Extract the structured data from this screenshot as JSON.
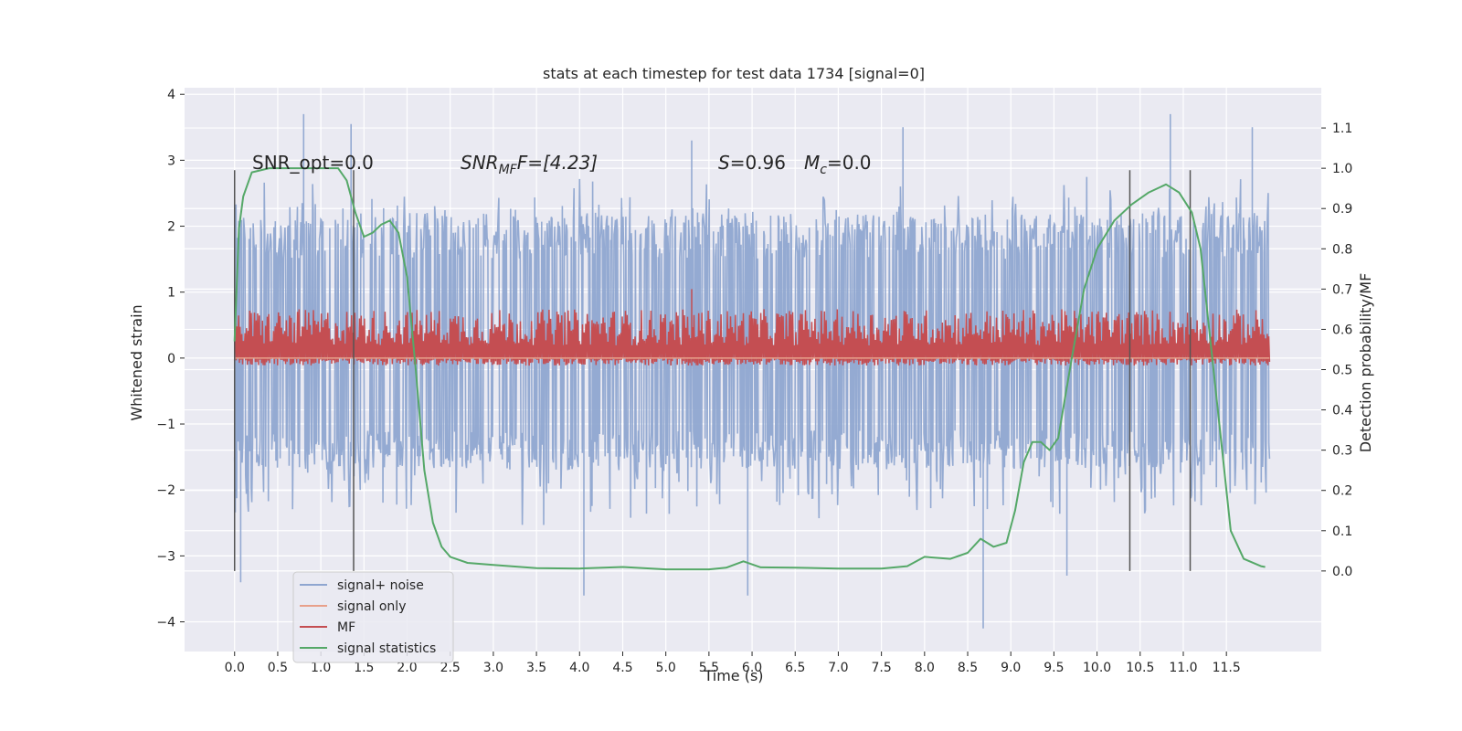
{
  "chart_data": {
    "type": "line",
    "title": "stats at each timestep for test data 1734 [signal=0]",
    "xlabel": "Time (s)",
    "ylabel": "Whitened strain",
    "ylabel_right": "Detection probability/MF",
    "xlim": [
      -0.58,
      12.6
    ],
    "ylim": [
      -4.45,
      4.1
    ],
    "ylim_right": [
      -0.2,
      1.2
    ],
    "x_ticks": [
      "0.0",
      "0.5",
      "1.0",
      "1.5",
      "2.0",
      "2.5",
      "3.0",
      "3.5",
      "4.0",
      "4.5",
      "5.0",
      "5.5",
      "6.0",
      "6.5",
      "7.0",
      "7.5",
      "8.0",
      "8.5",
      "9.0",
      "9.5",
      "10.0",
      "10.5",
      "11.0",
      "11.5"
    ],
    "y_ticks": [
      "−4",
      "−3",
      "−2",
      "−1",
      "0",
      "1",
      "2",
      "3",
      "4"
    ],
    "y_ticks_right": [
      "0.0",
      "0.1",
      "0.2",
      "0.3",
      "0.4",
      "0.5",
      "0.6",
      "0.7",
      "0.8",
      "0.9",
      "1.0",
      "1.1"
    ],
    "grid": true,
    "legend_position": "lower-left",
    "annotations": {
      "snr_opt": "SNR_opt=0.0",
      "snr_mf_main": "SNR",
      "snr_mf_sub": "MF",
      "snr_mf_tail": "F=[4.23]",
      "s_main": "S",
      "s_tail": "=0.96",
      "mc_main": "M",
      "mc_sub": "c",
      "mc_tail": "=0.0"
    },
    "vertical_markers": [
      0.0,
      1.38,
      10.38,
      11.08
    ],
    "series": [
      {
        "name": "signal+ noise",
        "color": "#8fa6d0",
        "envelope_x": [
          0.0,
          12.0
        ],
        "typical_range": [
          -1.7,
          2.2
        ],
        "peaks_up": [
          [
            0.05,
            1.9
          ],
          [
            0.8,
            3.7
          ],
          [
            1.35,
            3.55
          ],
          [
            5.3,
            3.3
          ],
          [
            7.75,
            3.5
          ],
          [
            10.85,
            3.7
          ],
          [
            11.8,
            3.5
          ]
        ],
        "peaks_down": [
          [
            0.07,
            -3.4
          ],
          [
            4.05,
            -3.6
          ],
          [
            5.95,
            -3.6
          ],
          [
            8.68,
            -4.1
          ],
          [
            9.65,
            -3.3
          ]
        ]
      },
      {
        "name": "signal only",
        "color": "#e8a08a",
        "values": "0 everywhere"
      },
      {
        "name": "MF",
        "color": "#c44e52",
        "axis": "right",
        "typical_range": [
          0.51,
          0.65
        ],
        "peak": [
          5.3,
          0.7
        ]
      },
      {
        "name": "signal statistics",
        "color": "#55a868",
        "axis": "right",
        "x": [
          0.0,
          0.05,
          0.1,
          0.2,
          0.4,
          0.8,
          1.2,
          1.3,
          1.4,
          1.5,
          1.6,
          1.7,
          1.8,
          1.9,
          2.0,
          2.1,
          2.2,
          2.3,
          2.4,
          2.5,
          2.7,
          3.0,
          3.5,
          4.0,
          4.5,
          5.0,
          5.5,
          5.7,
          5.9,
          6.1,
          6.5,
          7.0,
          7.5,
          7.8,
          8.0,
          8.3,
          8.5,
          8.65,
          8.8,
          8.95,
          9.05,
          9.15,
          9.25,
          9.35,
          9.45,
          9.55,
          9.7,
          9.85,
          10.0,
          10.2,
          10.4,
          10.6,
          10.8,
          10.95,
          11.1,
          11.2,
          11.3,
          11.45,
          11.55,
          11.7,
          11.9,
          11.95
        ],
        "y": [
          0.57,
          0.85,
          0.93,
          0.99,
          1.0,
          1.0,
          1.0,
          0.97,
          0.89,
          0.83,
          0.84,
          0.86,
          0.87,
          0.84,
          0.73,
          0.5,
          0.25,
          0.12,
          0.06,
          0.035,
          0.02,
          0.015,
          0.007,
          0.006,
          0.01,
          0.004,
          0.004,
          0.008,
          0.024,
          0.009,
          0.008,
          0.006,
          0.006,
          0.012,
          0.035,
          0.03,
          0.045,
          0.08,
          0.06,
          0.07,
          0.15,
          0.27,
          0.32,
          0.32,
          0.3,
          0.33,
          0.52,
          0.7,
          0.8,
          0.87,
          0.91,
          0.94,
          0.96,
          0.94,
          0.89,
          0.8,
          0.6,
          0.3,
          0.1,
          0.03,
          0.012,
          0.01
        ]
      }
    ],
    "legend": [
      "signal+ noise",
      "signal only",
      "MF",
      "signal statistics"
    ]
  }
}
